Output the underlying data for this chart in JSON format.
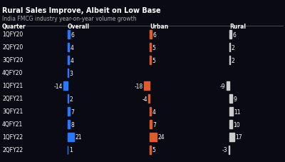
{
  "title": "Rural Sales Improve, Albeit on Low Base",
  "subtitle": "India FMCG industry year-on-year volume growth",
  "quarters": [
    "1QFY20",
    "2QFY20",
    "3QFY20",
    "4QFY20",
    "1QFY21",
    "2QFY21",
    "3QFY21",
    "4QFY21",
    "1QFY22",
    "2QFY22"
  ],
  "overall": [
    6,
    4,
    4,
    3,
    -14,
    2,
    7,
    8,
    21,
    1
  ],
  "urban": [
    6,
    5,
    5,
    null,
    -18,
    -4,
    4,
    7,
    24,
    5
  ],
  "rural": [
    6,
    2,
    2,
    null,
    -9,
    9,
    11,
    10,
    17,
    -3
  ],
  "overall_color": "#2979ff",
  "urban_color": "#e05a2b",
  "rural_color": "#cccccc",
  "bg_color": "#0a0a14",
  "text_color": "#ffffff",
  "bar_height": 0.6,
  "scale": 0.42
}
